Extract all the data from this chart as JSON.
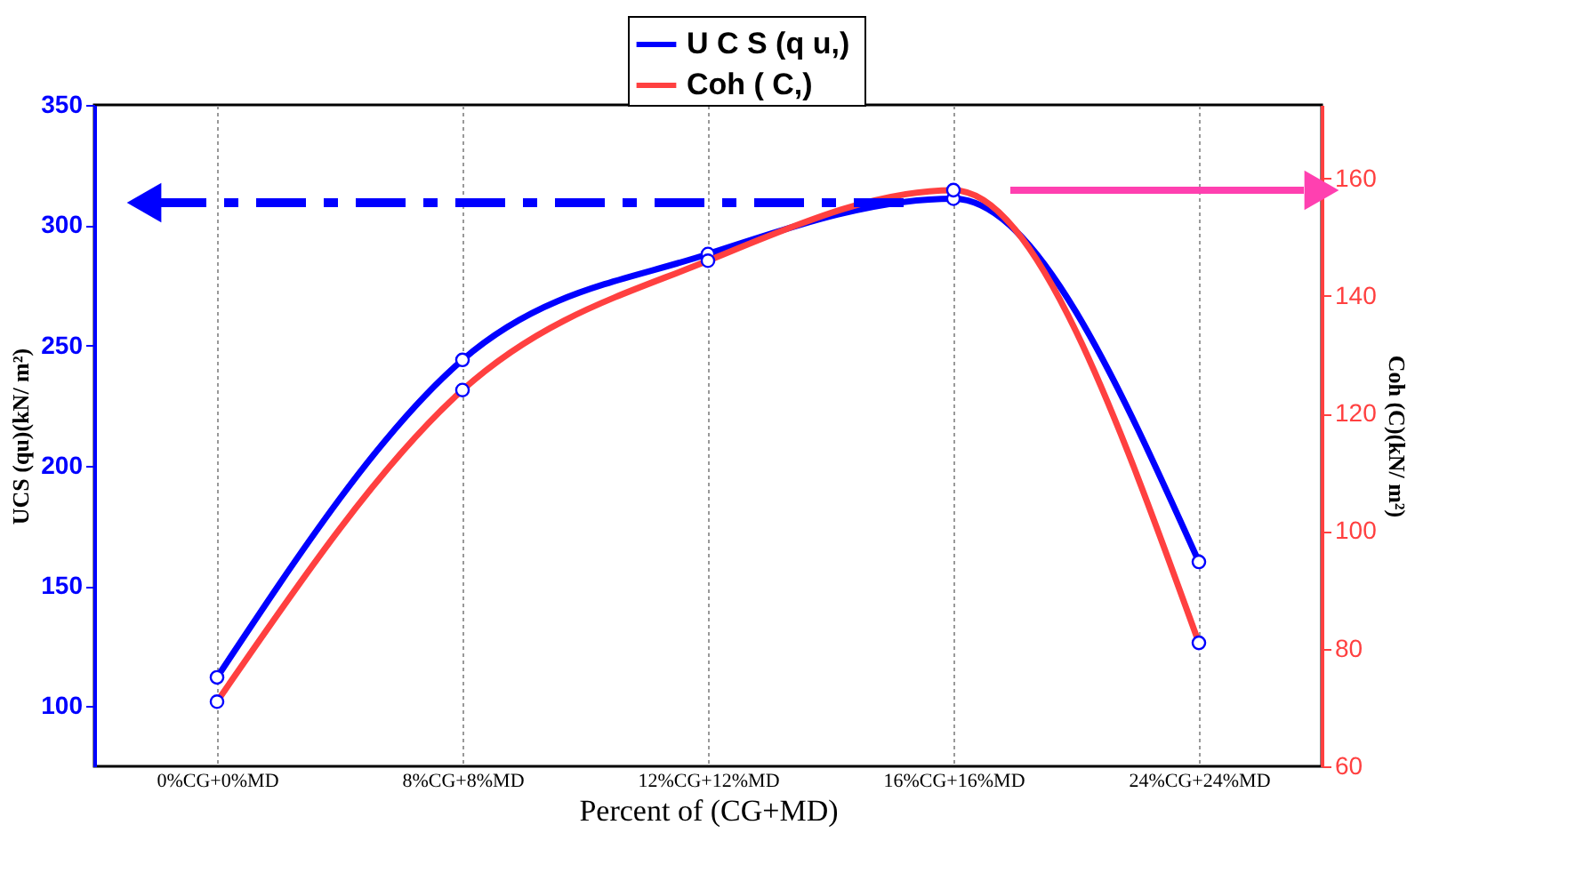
{
  "chart_data": {
    "type": "line",
    "categories": [
      "0%CG+0%MD",
      "8%CG+8%MD",
      "12%CG+12%MD",
      "16%CG+16%MD",
      "24%CG+24%MD"
    ],
    "series": [
      {
        "name": "U C S  (q u,)",
        "color": "#0000ff",
        "values": [
          112,
          244,
          288,
          311,
          160
        ]
      },
      {
        "name": "Coh  ( C,)",
        "color": "#ff4040",
        "values": [
          71,
          124,
          146,
          158,
          81
        ],
        "axis": "y2"
      }
    ],
    "xlabel": "Percent of (CG+MD)",
    "ylabel": "UCS (qu)(kN/ m²)",
    "y2label": "Coh (C)(kN/ m²)",
    "ylim": [
      75,
      350
    ],
    "yticks": [
      100,
      150,
      200,
      250,
      300,
      350
    ],
    "y2lim": [
      60,
      172.5
    ],
    "y2ticks": [
      60,
      80,
      100,
      120,
      140,
      160
    ],
    "grid": "x",
    "legend": "top",
    "marker": "circle",
    "line_style": "solid"
  }
}
